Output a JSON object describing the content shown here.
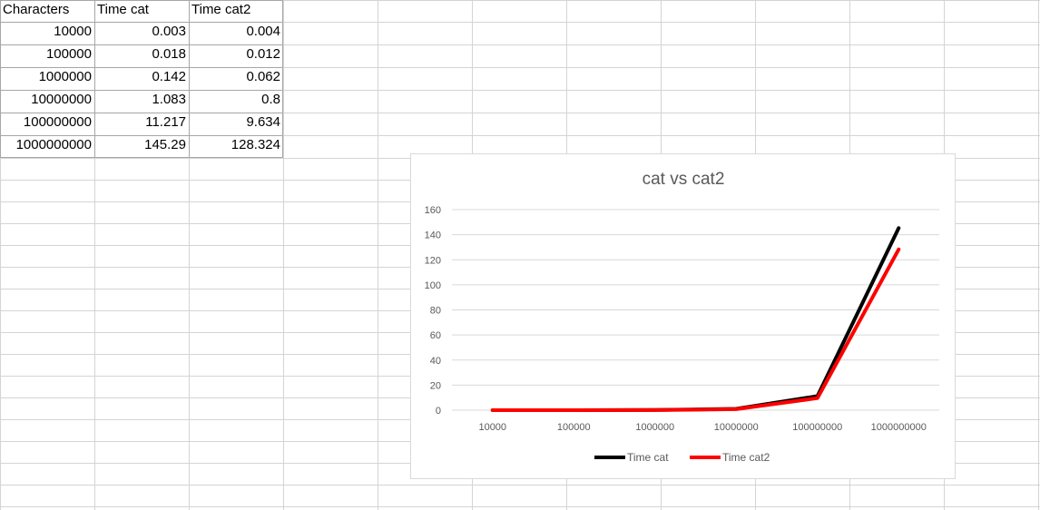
{
  "sheet": {
    "headers": [
      "Characters",
      "Time cat",
      "Time cat2"
    ],
    "rows": [
      [
        "10000",
        "0.003",
        "0.004"
      ],
      [
        "100000",
        "0.018",
        "0.012"
      ],
      [
        "1000000",
        "0.142",
        "0.062"
      ],
      [
        "10000000",
        "1.083",
        "0.8"
      ],
      [
        "100000000",
        "11.217",
        "9.634"
      ],
      [
        "1000000000",
        "145.29",
        "128.324"
      ]
    ]
  },
  "chart_data": {
    "type": "line",
    "title": "cat vs cat2",
    "categories": [
      "10000",
      "100000",
      "1000000",
      "10000000",
      "100000000",
      "1000000000"
    ],
    "series": [
      {
        "name": "Time cat",
        "color": "#000000",
        "values": [
          0.003,
          0.018,
          0.142,
          1.083,
          11.217,
          145.29
        ]
      },
      {
        "name": "Time cat2",
        "color": "#ff0000",
        "values": [
          0.004,
          0.012,
          0.062,
          0.8,
          9.634,
          128.324
        ]
      }
    ],
    "ylim": [
      0,
      160
    ],
    "yticks": [
      "0",
      "20",
      "40",
      "60",
      "80",
      "100",
      "120",
      "140",
      "160"
    ],
    "grid": true,
    "legend": "bottom"
  }
}
